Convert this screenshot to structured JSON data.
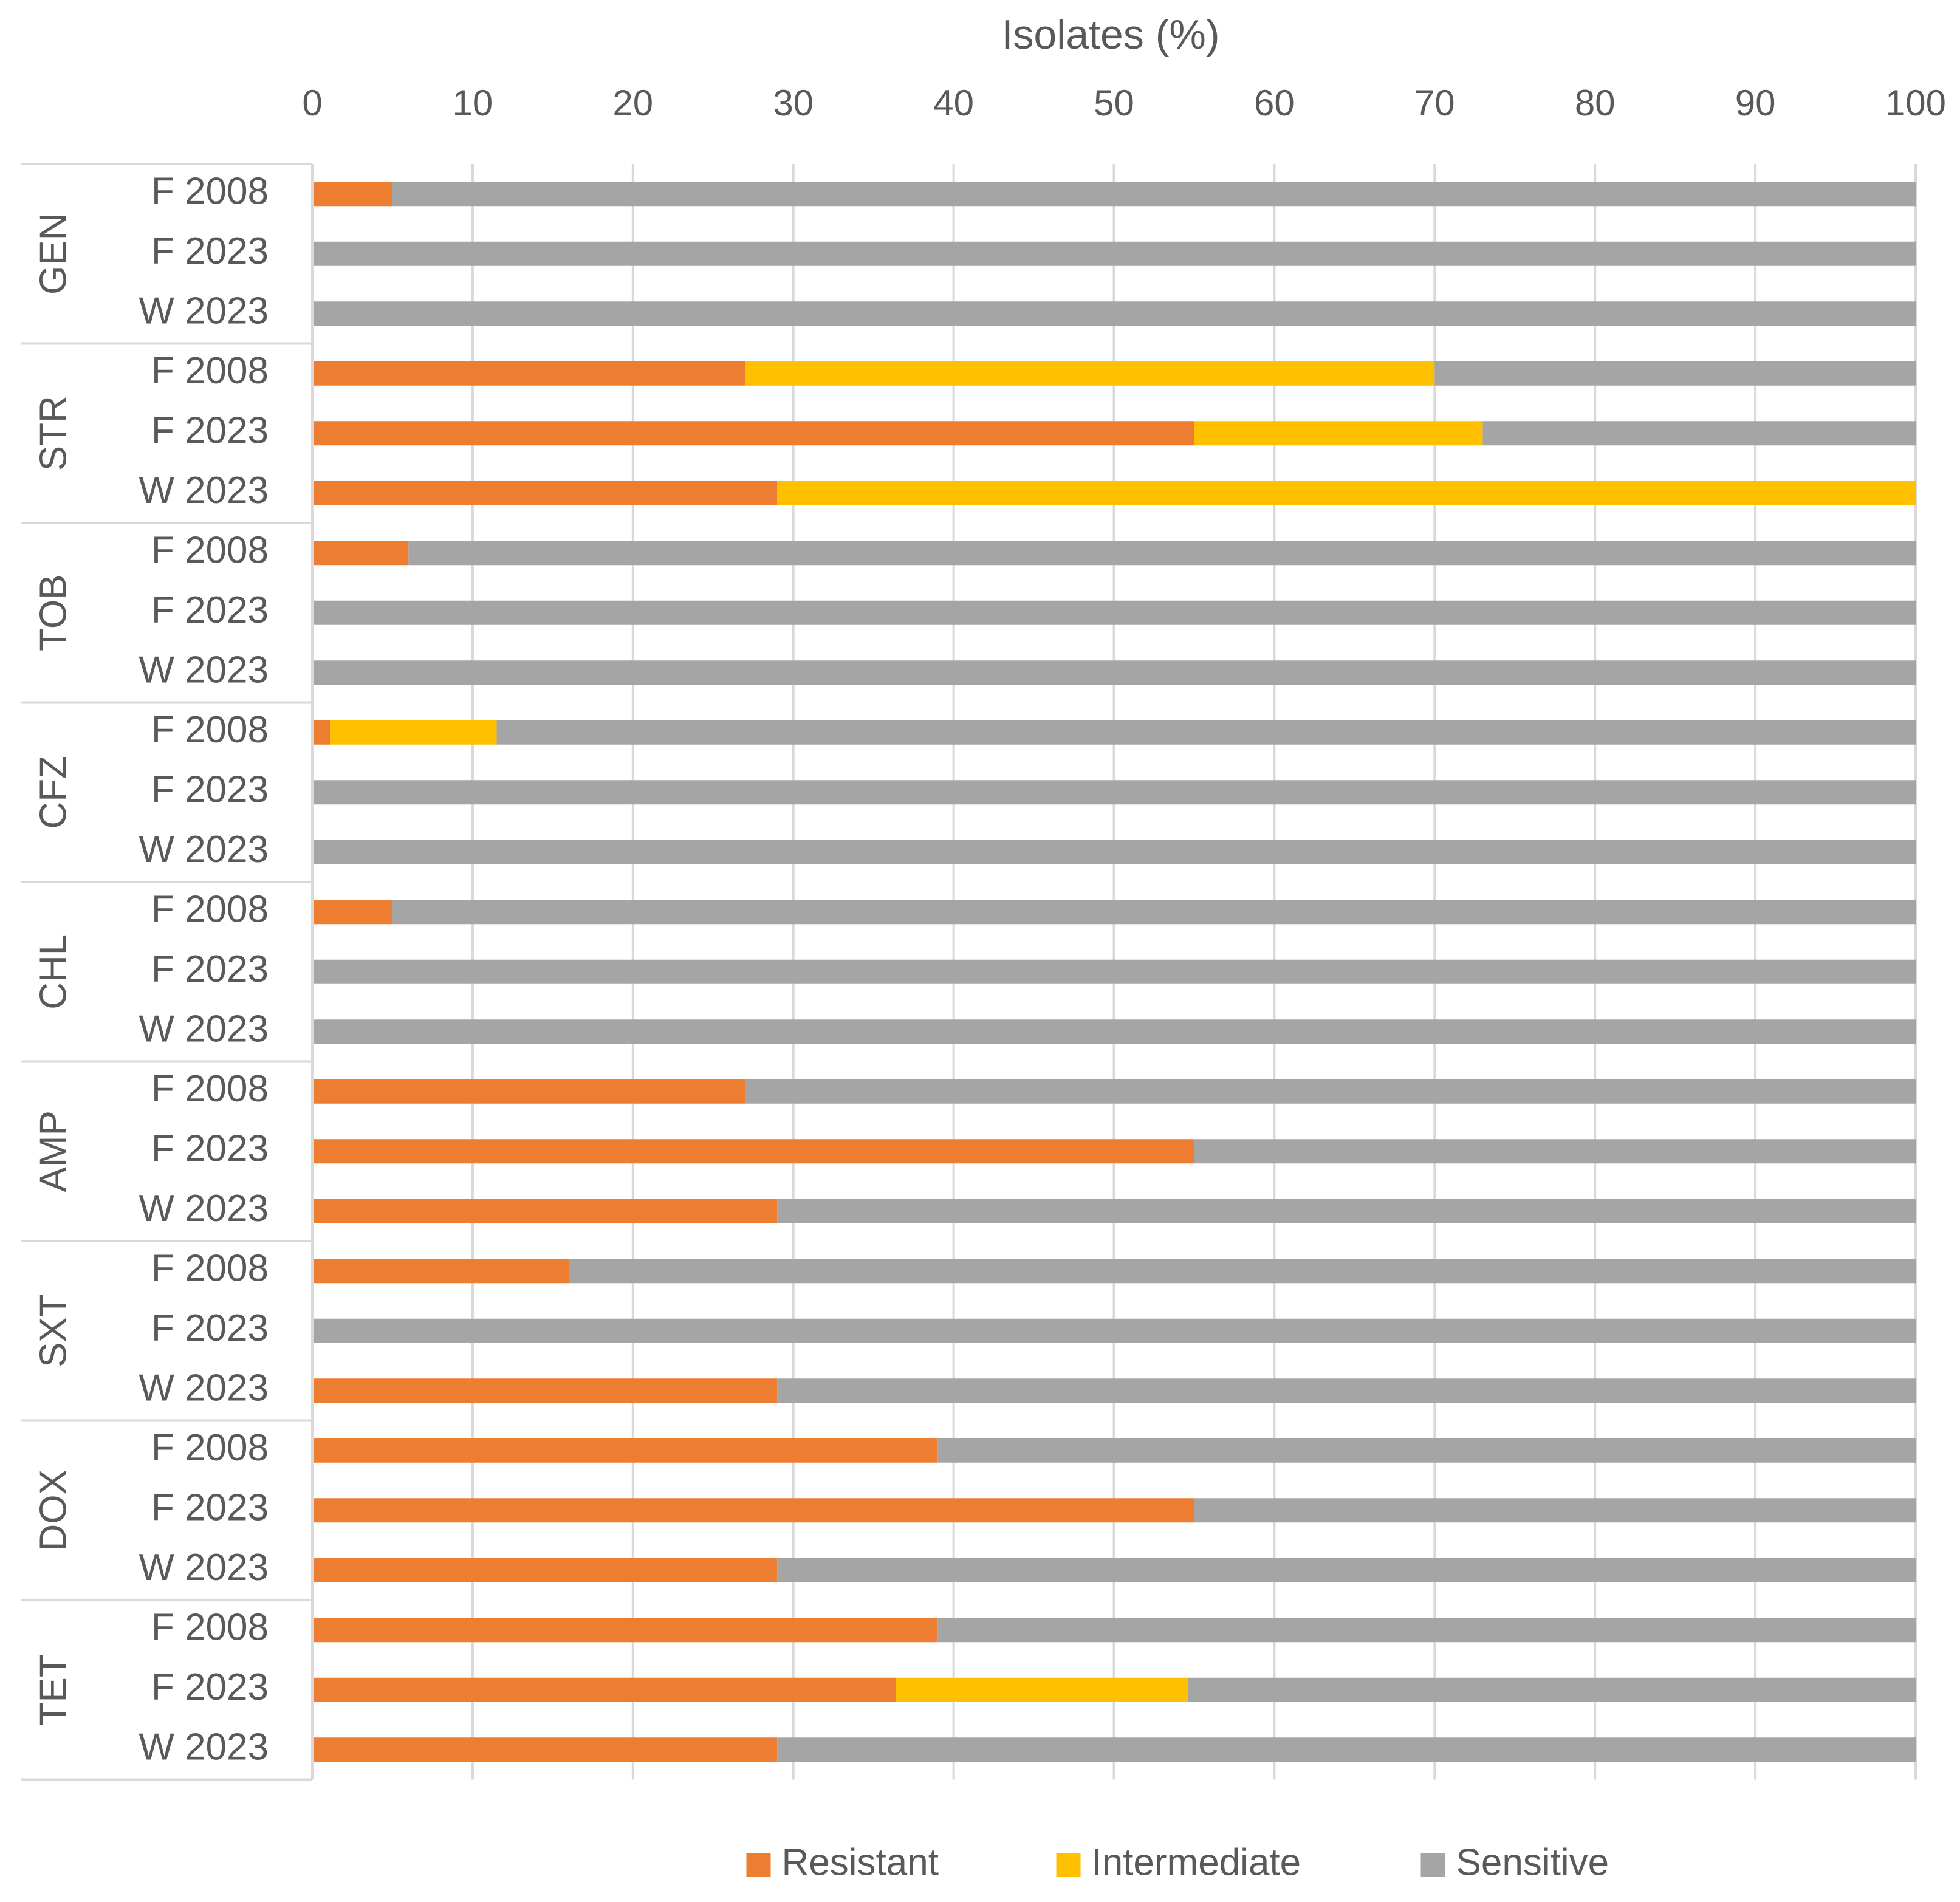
{
  "chart_data": {
    "type": "bar",
    "orientation": "horizontal",
    "stacked": true,
    "xlabel": "Isolates (%)",
    "xlim": [
      0,
      100
    ],
    "xticks": [
      0,
      10,
      20,
      30,
      40,
      50,
      60,
      70,
      80,
      90,
      100
    ],
    "grid": true,
    "legend_position": "bottom",
    "colors": {
      "Resistant": "#ED7D31",
      "Intermediate": "#FFC000",
      "Sensitive": "#A5A5A5"
    },
    "series_names": [
      "Resistant",
      "Intermediate",
      "Sensitive"
    ],
    "groups": [
      {
        "name": "GEN",
        "rows": [
          {
            "label": "F 2008",
            "values": [
              5,
              0,
              95
            ]
          },
          {
            "label": "F 2023",
            "values": [
              0,
              0,
              100
            ]
          },
          {
            "label": "W 2023",
            "values": [
              0,
              0,
              100
            ]
          }
        ]
      },
      {
        "name": "STR",
        "rows": [
          {
            "label": "F 2008",
            "values": [
              27,
              43,
              30
            ]
          },
          {
            "label": "F 2023",
            "values": [
              55,
              18,
              27
            ]
          },
          {
            "label": "W 2023",
            "values": [
              29,
              71,
              0
            ]
          }
        ]
      },
      {
        "name": "TOB",
        "rows": [
          {
            "label": "F 2008",
            "values": [
              6,
              0,
              94
            ]
          },
          {
            "label": "F 2023",
            "values": [
              0,
              0,
              100
            ]
          },
          {
            "label": "W 2023",
            "values": [
              0,
              0,
              100
            ]
          }
        ]
      },
      {
        "name": "CFZ",
        "rows": [
          {
            "label": "F 2008",
            "values": [
              1.1,
              10.4,
              88.5
            ]
          },
          {
            "label": "F 2023",
            "values": [
              0,
              0,
              100
            ]
          },
          {
            "label": "W 2023",
            "values": [
              0,
              0,
              100
            ]
          }
        ]
      },
      {
        "name": "CHL",
        "rows": [
          {
            "label": "F 2008",
            "values": [
              5,
              0,
              95
            ]
          },
          {
            "label": "F 2023",
            "values": [
              0,
              0,
              100
            ]
          },
          {
            "label": "W 2023",
            "values": [
              0,
              0,
              100
            ]
          }
        ]
      },
      {
        "name": "AMP",
        "rows": [
          {
            "label": "F 2008",
            "values": [
              27,
              0,
              73
            ]
          },
          {
            "label": "F 2023",
            "values": [
              55,
              0,
              45
            ]
          },
          {
            "label": "W 2023",
            "values": [
              29,
              0,
              71
            ]
          }
        ]
      },
      {
        "name": "SXT",
        "rows": [
          {
            "label": "F 2008",
            "values": [
              16,
              0,
              84
            ]
          },
          {
            "label": "F 2023",
            "values": [
              0,
              0,
              100
            ]
          },
          {
            "label": "W 2023",
            "values": [
              29,
              0,
              71
            ]
          }
        ]
      },
      {
        "name": "DOX",
        "rows": [
          {
            "label": "F 2008",
            "values": [
              39,
              0,
              61
            ]
          },
          {
            "label": "F 2023",
            "values": [
              55,
              0,
              45
            ]
          },
          {
            "label": "W 2023",
            "values": [
              29,
              0,
              71
            ]
          }
        ]
      },
      {
        "name": "TET",
        "rows": [
          {
            "label": "F 2008",
            "values": [
              39,
              0,
              61
            ]
          },
          {
            "label": "F 2023",
            "values": [
              36.4,
              18.2,
              45.4
            ]
          },
          {
            "label": "W 2023",
            "values": [
              29,
              0,
              71
            ]
          }
        ]
      }
    ]
  }
}
